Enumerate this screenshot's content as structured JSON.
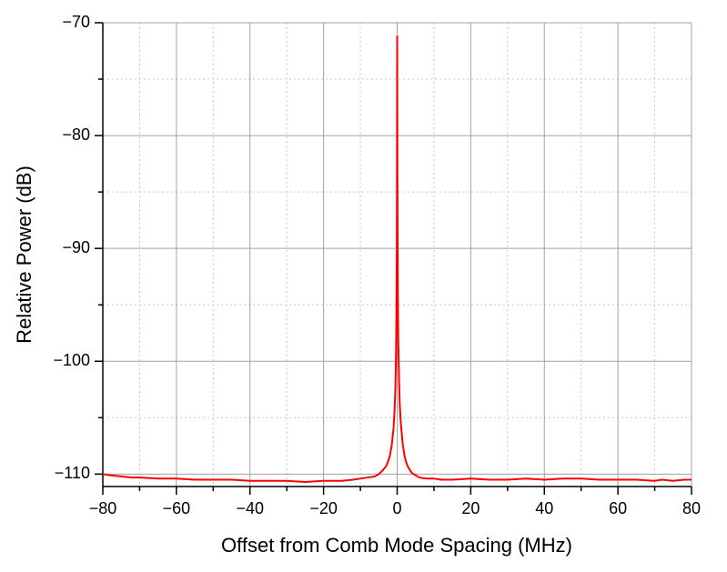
{
  "chart_data": {
    "type": "line",
    "x_label": "Offset from Comb Mode Spacing (MHz)",
    "y_label": "Relative Power (dB)",
    "color": "#ff0000",
    "x": [
      -80,
      -78,
      -75,
      -72,
      -70,
      -65,
      -60,
      -55,
      -50,
      -45,
      -40,
      -35,
      -30,
      -25,
      -20,
      -15,
      -12,
      -10,
      -8,
      -6,
      -5,
      -4,
      -3,
      -2.5,
      -2,
      -1.5,
      -1,
      -0.7,
      -0.5,
      -0.3,
      -0.2,
      -0.1,
      -0.05,
      0,
      0.05,
      0.1,
      0.2,
      0.3,
      0.5,
      0.7,
      1,
      1.5,
      2,
      2.5,
      3,
      4,
      5,
      6,
      8,
      10,
      12,
      15,
      20,
      25,
      30,
      35,
      40,
      45,
      50,
      55,
      60,
      65,
      70,
      72,
      75,
      78,
      80
    ],
    "values": [
      -110.0,
      -110.1,
      -110.2,
      -110.3,
      -110.3,
      -110.4,
      -110.4,
      -110.5,
      -110.5,
      -110.5,
      -110.6,
      -110.6,
      -110.6,
      -110.7,
      -110.6,
      -110.6,
      -110.5,
      -110.4,
      -110.3,
      -110.2,
      -110.0,
      -109.7,
      -109.3,
      -108.9,
      -108.4,
      -107.5,
      -106.0,
      -104.3,
      -102.5,
      -99.0,
      -96.0,
      -90.0,
      -84.0,
      -71.2,
      -80.0,
      -87.0,
      -94.5,
      -98.0,
      -101.5,
      -103.8,
      -105.5,
      -107.3,
      -108.4,
      -109.0,
      -109.4,
      -109.9,
      -110.1,
      -110.3,
      -110.4,
      -110.4,
      -110.5,
      -110.5,
      -110.4,
      -110.5,
      -110.5,
      -110.4,
      -110.5,
      -110.4,
      -110.4,
      -110.5,
      -110.5,
      -110.5,
      -110.6,
      -110.5,
      -110.6,
      -110.5,
      -110.5
    ],
    "xlim": [
      -80,
      80
    ],
    "ylim": [
      -111.1,
      -70
    ],
    "xticks": [
      {
        "value": -80,
        "label": "−80"
      },
      {
        "value": -60,
        "label": "−60"
      },
      {
        "value": -40,
        "label": "−40"
      },
      {
        "value": -20,
        "label": "−20"
      },
      0,
      20,
      40,
      60,
      80
    ],
    "yticks": [
      {
        "value": -70,
        "label": "−70"
      },
      {
        "value": -80,
        "label": "−80"
      },
      {
        "value": -90,
        "label": "−90"
      },
      {
        "value": -100,
        "label": "−100"
      },
      {
        "value": -110,
        "label": "−110"
      }
    ],
    "minor_xticks": [
      -70,
      -50,
      -30,
      -10,
      10,
      30,
      50,
      70
    ],
    "minor_yticks": [
      -75,
      -85,
      -95,
      -105
    ],
    "grid": true
  }
}
